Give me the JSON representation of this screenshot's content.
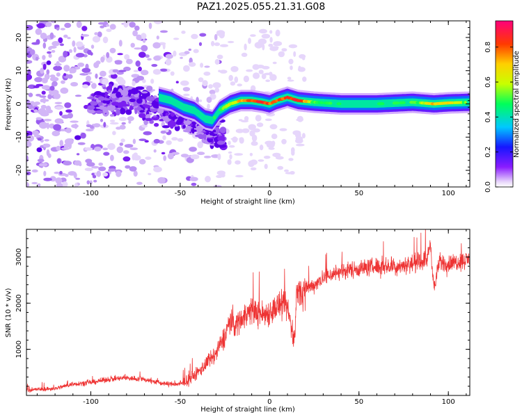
{
  "title": "PAZ1.2025.055.21.31.G08",
  "chart_data": [
    {
      "type": "heatmap",
      "name": "spectrogram",
      "xlabel": "Height of straight line (km)",
      "ylabel": "Frequency (Hz)",
      "xlim": [
        -136,
        112
      ],
      "ylim": [
        -25,
        25
      ],
      "xticks": [
        -100,
        -50,
        0,
        50,
        100
      ],
      "yticks": [
        20,
        10,
        0,
        -10,
        -20
      ],
      "colorbar": {
        "label": "Normalized spectral amplitude",
        "range": [
          0,
          0.95
        ],
        "ticks": [
          "0.0",
          "0.2",
          "0.4",
          "0.6",
          "0.8"
        ],
        "tick_values": [
          0,
          0.2,
          0.4,
          0.6,
          0.8
        ]
      },
      "ridge": {
        "x": [
          -62,
          -55,
          -48,
          -42,
          -36,
          -32,
          -28,
          -22,
          -16,
          -10,
          -4,
          0,
          4,
          10,
          16,
          25,
          40,
          60,
          80,
          92,
          100,
          112
        ],
        "freq": [
          2,
          1,
          -1,
          -2,
          -4.5,
          -5,
          -2,
          0,
          1,
          1,
          0.5,
          0,
          1,
          2,
          1,
          0.5,
          0,
          0,
          0.5,
          0,
          0.3,
          0.5
        ],
        "amp": [
          0.35,
          0.3,
          0.3,
          0.35,
          0.4,
          0.45,
          0.5,
          0.6,
          0.75,
          0.85,
          0.9,
          0.85,
          0.8,
          0.9,
          0.9,
          0.55,
          0.45,
          0.45,
          0.5,
          0.75,
          0.7,
          0.5
        ]
      }
    },
    {
      "type": "line",
      "name": "snr",
      "xlabel": "Height of straight line (km)",
      "ylabel": "SNR (10 * v/v)",
      "xlim": [
        -136,
        112
      ],
      "ylim": [
        0,
        3600
      ],
      "xticks": [
        -100,
        -50,
        0,
        50,
        100
      ],
      "yticks": [
        1000,
        2000,
        3000
      ],
      "color": "#ee3333",
      "x": [
        -136,
        -120,
        -110,
        -100,
        -90,
        -80,
        -70,
        -60,
        -50,
        -45,
        -40,
        -35,
        -30,
        -25,
        -22,
        -20,
        -15,
        -10,
        -5,
        0,
        5,
        10,
        14,
        15,
        20,
        25,
        30,
        40,
        50,
        60,
        70,
        80,
        88,
        90,
        92,
        95,
        100,
        105,
        112
      ],
      "y": [
        120,
        150,
        250,
        280,
        350,
        380,
        350,
        260,
        240,
        350,
        500,
        700,
        900,
        1300,
        1650,
        1500,
        1700,
        1850,
        1750,
        1800,
        1950,
        1900,
        1150,
        2200,
        2300,
        2400,
        2550,
        2700,
        2750,
        2800,
        2800,
        2850,
        2950,
        3300,
        2300,
        2900,
        2850,
        2900,
        2950
      ]
    }
  ]
}
